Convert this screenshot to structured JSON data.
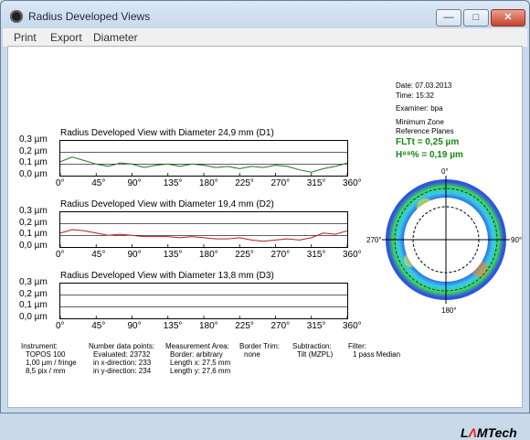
{
  "window": {
    "title": "Radius Developed Views",
    "min_label": "—",
    "max_label": "□",
    "close_label": "✕"
  },
  "menu": [
    "Print",
    "Export",
    "Diameter"
  ],
  "info": {
    "date": "Date: 07.03.2013",
    "time": "Time: 15:32",
    "examiner": "Examiner: bpa",
    "zone": "Minimum Zone",
    "planes": "Reference Planes",
    "flt": "FLTt  = 0,25 µm",
    "h": "H⁸⁸% = 0,19 µm"
  },
  "polar": {
    "top": "0°",
    "right": "90°",
    "bottom": "180°",
    "left": "270°"
  },
  "x_ticks": [
    "0°",
    "45°",
    "90°",
    "135°",
    "180°",
    "225°",
    "270°",
    "315°",
    "360°"
  ],
  "y_ticks": [
    "0,3 µm",
    "0,2 µm",
    "0,1 µm",
    "0,0 µm"
  ],
  "chart_data": [
    {
      "type": "line",
      "title": "Radius Developed View with Diameter 24,9 mm (D1)",
      "series": [
        {
          "color": "#1b7a1b",
          "x": [
            0,
            15,
            30,
            45,
            60,
            75,
            90,
            105,
            120,
            135,
            150,
            165,
            180,
            195,
            210,
            225,
            240,
            255,
            270,
            285,
            300,
            315,
            330,
            345,
            360
          ],
          "values": [
            0.12,
            0.16,
            0.13,
            0.1,
            0.08,
            0.11,
            0.1,
            0.07,
            0.09,
            0.1,
            0.08,
            0.1,
            0.09,
            0.07,
            0.08,
            0.06,
            0.08,
            0.07,
            0.09,
            0.08,
            0.05,
            0.03,
            0.06,
            0.08,
            0.11
          ]
        }
      ],
      "ylim": [
        0,
        0.3
      ],
      "xlim": [
        0,
        360
      ]
    },
    {
      "type": "line",
      "title": "Radius Developed View with Diameter 19,4 mm (D2)",
      "series": [
        {
          "color": "#b81c1c",
          "x": [
            0,
            15,
            30,
            45,
            60,
            75,
            90,
            105,
            120,
            135,
            150,
            165,
            180,
            195,
            210,
            225,
            240,
            255,
            270,
            285,
            300,
            315,
            330,
            345,
            360
          ],
          "values": [
            0.12,
            0.15,
            0.14,
            0.12,
            0.1,
            0.11,
            0.1,
            0.09,
            0.09,
            0.09,
            0.08,
            0.09,
            0.08,
            0.07,
            0.07,
            0.08,
            0.06,
            0.05,
            0.06,
            0.07,
            0.06,
            0.08,
            0.12,
            0.11,
            0.14
          ]
        }
      ],
      "ylim": [
        0,
        0.3
      ],
      "xlim": [
        0,
        360
      ]
    },
    {
      "type": "line",
      "title": "Radius Developed View with Diameter 13,8 mm (D3)",
      "series": [],
      "ylim": [
        0,
        0.3
      ],
      "xlim": [
        0,
        360
      ]
    }
  ],
  "footer": {
    "instrument": [
      "Instrument:",
      "TOPOS 100",
      "1,00 µm / fringe",
      "8,5 pix / mm"
    ],
    "points": [
      "Number data points:",
      "Evaluated: 23732",
      "in x-direction: 233",
      "in y-direction: 234"
    ],
    "area": [
      "Measurement Area:",
      "Border: arbitrary",
      "Length x: 27,5 mm",
      "Length y: 27,6 mm"
    ],
    "trim": [
      "Border Trim:",
      "none"
    ],
    "subtraction": [
      "Subtraction:",
      "Tilt (MZPL)"
    ],
    "filter": [
      "Filter:",
      "1 pass Median"
    ]
  },
  "logo": {
    "a": "L",
    "b": "Λ",
    "c": "MTech"
  }
}
